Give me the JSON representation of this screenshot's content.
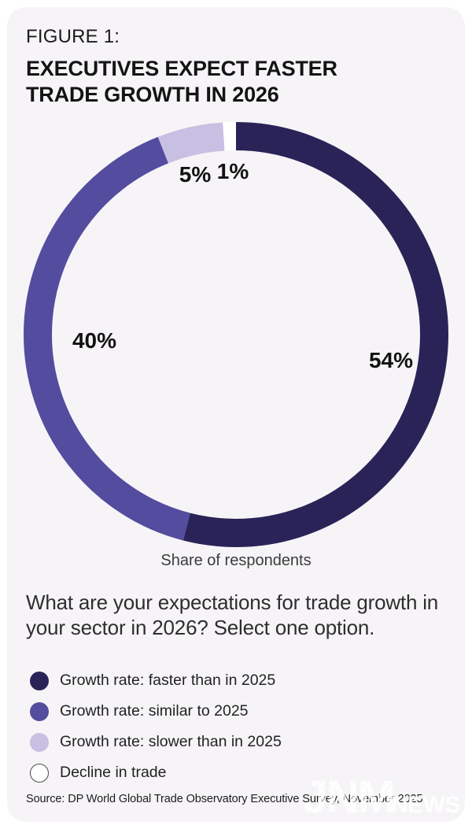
{
  "figure_label": "FIGURE 1:",
  "title_lines": [
    "EXECUTIVES EXPECT FASTER",
    "TRADE GROWTH IN 2026"
  ],
  "chart_data": {
    "type": "pie",
    "donut": true,
    "title": "EXECUTIVES EXPECT FASTER TRADE GROWTH IN 2026",
    "caption": "Share of respondents",
    "categories": [
      "Growth rate: faster than in 2025",
      "Growth rate: similar to 2025",
      "Growth rate: slower than in 2025",
      "Decline in trade"
    ],
    "values": [
      54,
      40,
      5,
      1
    ],
    "unit": "%",
    "labels": [
      "54%",
      "40%",
      "5%",
      "1%"
    ],
    "colors": [
      "#2a2357",
      "#544c9e",
      "#c7c0e2",
      "#ffffff"
    ],
    "start_angle_deg": 0,
    "direction": "clockwise",
    "legend_position": "bottom-left"
  },
  "axis_caption": "Share of respondents",
  "question": "What are your expectations for trade growth in your sector in 2026? Select one option.",
  "legend": [
    {
      "label": "Growth rate: faster than in 2025",
      "color": "#2a2357",
      "outline": false
    },
    {
      "label": "Growth rate: similar to 2025",
      "color": "#544c9e",
      "outline": false
    },
    {
      "label": "Growth rate: slower than in 2025",
      "color": "#c7c0e2",
      "outline": false
    },
    {
      "label": "Decline in trade",
      "color": "#ffffff",
      "outline": true
    }
  ],
  "source": "Source: DP World Global Trade Observatory Executive Survey, November 2025",
  "watermark": {
    "main": "JNM",
    "sub": "NEWS"
  }
}
